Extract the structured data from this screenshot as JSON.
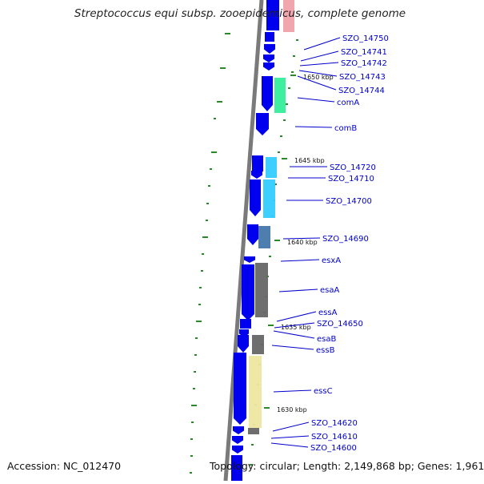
{
  "title": "Streptococcus equi subsp. zooepidemicus, complete genome",
  "accession": "Accession: NC_012470",
  "summary": "Topology: circular; Length: 2,149,868 bp; Genes: 1,961",
  "colors": {
    "backbone": "#7a7a7a",
    "cds": "#0000ee",
    "label": "#0000cc",
    "tick": "#2a8a2a",
    "cog_red": "#f0a0a8",
    "cog_green": "#33ee99",
    "cog_cyan": "#33ccff",
    "cog_steel": "#4477aa",
    "cog_gray": "#666666",
    "cog_yellow": "#eee6a0"
  },
  "kbp_labels": [
    {
      "text": "1650 kbp"
    },
    {
      "text": "1645 kbp"
    },
    {
      "text": "1640 kbp"
    },
    {
      "text": "1635 kbp"
    },
    {
      "text": "1630 kbp"
    }
  ],
  "gene_labels": [
    {
      "text": "SZO_14750"
    },
    {
      "text": "SZO_14741"
    },
    {
      "text": "SZO_14742"
    },
    {
      "text": "SZO_14743"
    },
    {
      "text": "SZO_14744"
    },
    {
      "text": "comA"
    },
    {
      "text": "comB"
    },
    {
      "text": "SZO_14720"
    },
    {
      "text": "SZO_14710"
    },
    {
      "text": "SZO_14700"
    },
    {
      "text": "SZO_14690"
    },
    {
      "text": "esxA"
    },
    {
      "text": "esaA"
    },
    {
      "text": "essA"
    },
    {
      "text": "SZO_14650"
    },
    {
      "text": "esaB"
    },
    {
      "text": "essB"
    },
    {
      "text": "essC"
    },
    {
      "text": "SZO_14620"
    },
    {
      "text": "SZO_14610"
    },
    {
      "text": "SZO_14600"
    }
  ]
}
